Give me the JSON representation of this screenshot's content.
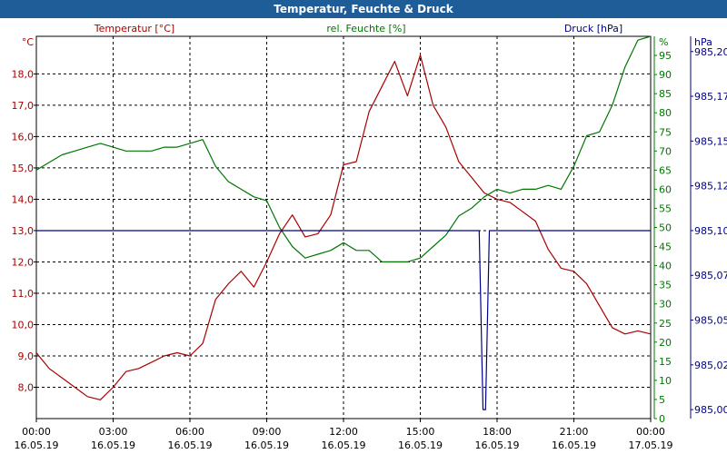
{
  "window": {
    "title": "Temperatur, Feuchte & Druck"
  },
  "chart_data": {
    "type": "line",
    "title": "Temperatur, Feuchte & Druck",
    "x_axis": {
      "range": [
        "16.05.19 00:00",
        "17.05.19 00:00"
      ],
      "ticks": [
        {
          "time": "00:00",
          "date": "16.05.19"
        },
        {
          "time": "03:00",
          "date": "16.05.19"
        },
        {
          "time": "06:00",
          "date": "16.05.19"
        },
        {
          "time": "09:00",
          "date": "16.05.19"
        },
        {
          "time": "12:00",
          "date": "16.05.19"
        },
        {
          "time": "15:00",
          "date": "16.05.19"
        },
        {
          "time": "18:00",
          "date": "16.05.19"
        },
        {
          "time": "21:00",
          "date": "16.05.19"
        },
        {
          "time": "00:00",
          "date": "17.05.19"
        }
      ]
    },
    "grid": true,
    "axes": [
      {
        "id": "temp",
        "side": "left",
        "label": "Temperatur [°C]",
        "unit": "°C",
        "color": "#aa0000",
        "range": [
          7.0,
          19.2
        ],
        "ticks": [
          "8,0",
          "9,0",
          "10,0",
          "11,0",
          "12,0",
          "13,0",
          "14,0",
          "15,0",
          "16,0",
          "17,0",
          "18,0"
        ]
      },
      {
        "id": "hum",
        "side": "right",
        "label": "rel. Feuchte [%]",
        "unit": "%",
        "color": "#007700",
        "range": [
          0,
          100
        ],
        "ticks": [
          "0",
          "5",
          "10",
          "15",
          "20",
          "25",
          "30",
          "35",
          "40",
          "45",
          "50",
          "55",
          "60",
          "65",
          "70",
          "75",
          "80",
          "85",
          "90",
          "95"
        ]
      },
      {
        "id": "press",
        "side": "right",
        "label": "Druck [hPa]",
        "unit": "hPa",
        "color": "#000088",
        "range": [
          984.995,
          985.2085
        ],
        "ticks": [
          {
            "value": 985.0,
            "label": "985,00"
          },
          {
            "value": 985.025,
            "label": "985,02"
          },
          {
            "value": 985.05,
            "label": "985,05"
          },
          {
            "value": 985.075,
            "label": "985,07"
          },
          {
            "value": 985.1,
            "label": "985,10"
          },
          {
            "value": 985.125,
            "label": "985,12"
          },
          {
            "value": 985.15,
            "label": "985,15"
          },
          {
            "value": 985.175,
            "label": "985,17"
          },
          {
            "value": 985.2,
            "label": "985,20"
          }
        ]
      }
    ],
    "series": [
      {
        "name": "Temperatur [°C]",
        "axis": "temp",
        "color": "#aa0000",
        "hours": [
          0,
          0.2,
          0.5,
          1,
          1.5,
          2,
          2.5,
          3,
          3.5,
          4,
          4.5,
          5,
          5.5,
          6,
          6.5,
          7,
          7.5,
          8,
          8.5,
          9,
          9.5,
          10,
          10.5,
          11,
          11.5,
          12,
          12.5,
          13,
          13.5,
          14,
          14.5,
          15,
          15.5,
          16,
          16.5,
          17,
          17.5,
          18,
          18.5,
          19,
          19.5,
          20,
          20.5,
          21,
          21.5,
          22,
          22.5,
          23,
          23.5,
          24
        ],
        "values": [
          9.1,
          8.9,
          8.6,
          8.3,
          8.0,
          7.7,
          7.6,
          8.0,
          8.5,
          8.6,
          8.8,
          9.0,
          9.1,
          9.0,
          9.4,
          10.8,
          11.3,
          11.7,
          11.2,
          12.0,
          12.9,
          13.5,
          12.8,
          12.9,
          13.5,
          15.1,
          15.2,
          16.8,
          17.6,
          18.4,
          17.3,
          18.6,
          17.0,
          16.3,
          15.2,
          14.7,
          14.2,
          14.0,
          13.9,
          13.6,
          13.3,
          12.4,
          11.8,
          11.7,
          11.3,
          10.6,
          9.9,
          9.7,
          9.8,
          9.7
        ]
      },
      {
        "name": "rel. Feuchte [%]",
        "axis": "hum",
        "color": "#007700",
        "hours": [
          0,
          0.5,
          1,
          1.5,
          2,
          2.5,
          3,
          3.5,
          4,
          4.5,
          5,
          5.5,
          6,
          6.5,
          7,
          7.5,
          8,
          8.5,
          9,
          9.5,
          10,
          10.5,
          11,
          11.5,
          12,
          12.5,
          13,
          13.5,
          14,
          14.5,
          15,
          15.5,
          16,
          16.5,
          17,
          17.5,
          18,
          18.5,
          19,
          19.5,
          20,
          20.5,
          21,
          21.5,
          22,
          22.5,
          23,
          23.5,
          24
        ],
        "values": [
          65,
          67,
          69,
          70,
          71,
          72,
          71,
          70,
          70,
          70,
          71,
          71,
          72,
          73,
          66,
          62,
          60,
          58,
          57,
          50,
          45,
          42,
          43,
          44,
          46,
          44,
          44,
          41,
          41,
          41,
          42,
          45,
          48,
          53,
          55,
          58,
          60,
          59,
          60,
          60,
          61,
          60,
          66,
          74,
          75,
          82,
          92,
          99,
          100
        ]
      },
      {
        "name": "Druck [hPa]",
        "axis": "press",
        "color": "#000088",
        "hours": [
          0,
          17.3,
          17.45,
          17.55,
          17.7,
          24
        ],
        "values": [
          985.1,
          985.1,
          985.0,
          985.0,
          985.1,
          985.1
        ]
      }
    ]
  }
}
